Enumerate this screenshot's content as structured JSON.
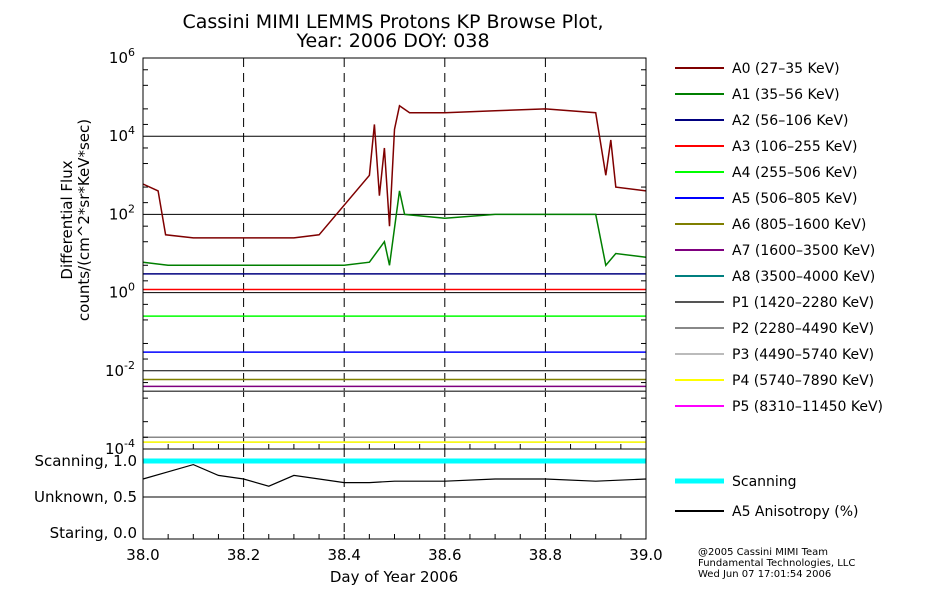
{
  "chart_data": {
    "type": "line",
    "title_line1": "Cassini MIMI LEMMS Protons KP Browse Plot,",
    "title_line2": "Year: 2006 DOY: 038",
    "ylabel_line1": "Differential Flux",
    "ylabel_line2": "counts/(cm^2*sr*KeV*sec)",
    "xlabel": "Day of Year 2006",
    "xlim": [
      38.0,
      39.0
    ],
    "ylim": [
      0.0001,
      1000000
    ],
    "yscale": "log",
    "x_ticks": [
      "38.0",
      "38.2",
      "38.4",
      "38.6",
      "38.8",
      "39.0"
    ],
    "y_tick_mantissa": "10",
    "y_tick_exponents": [
      "-4",
      "-2",
      "0",
      "2",
      "4",
      "6"
    ],
    "grid": true,
    "legend_position": "right",
    "series": [
      {
        "name": "A0 (27–35 KeV)",
        "color": "#7f0000",
        "points": [
          [
            38.0,
            600
          ],
          [
            38.03,
            400
          ],
          [
            38.045,
            30
          ],
          [
            38.1,
            25
          ],
          [
            38.2,
            25
          ],
          [
            38.3,
            25
          ],
          [
            38.35,
            30
          ],
          [
            38.45,
            1000
          ],
          [
            38.46,
            20000
          ],
          [
            38.47,
            300
          ],
          [
            38.48,
            5000
          ],
          [
            38.49,
            50
          ],
          [
            38.5,
            15000
          ],
          [
            38.51,
            60000
          ],
          [
            38.53,
            40000
          ],
          [
            38.6,
            40000
          ],
          [
            38.7,
            45000
          ],
          [
            38.8,
            50000
          ],
          [
            38.9,
            40000
          ],
          [
            38.92,
            1000
          ],
          [
            38.93,
            8000
          ],
          [
            38.94,
            500
          ],
          [
            39.0,
            400
          ]
        ]
      },
      {
        "name": "A1 (35–56 KeV)",
        "color": "#007f00",
        "points": [
          [
            38.0,
            6
          ],
          [
            38.05,
            5
          ],
          [
            38.1,
            5
          ],
          [
            38.2,
            5
          ],
          [
            38.3,
            5
          ],
          [
            38.4,
            5
          ],
          [
            38.45,
            6
          ],
          [
            38.48,
            20
          ],
          [
            38.49,
            5
          ],
          [
            38.51,
            400
          ],
          [
            38.52,
            100
          ],
          [
            38.6,
            80
          ],
          [
            38.7,
            100
          ],
          [
            38.8,
            100
          ],
          [
            38.9,
            100
          ],
          [
            38.92,
            5
          ],
          [
            38.94,
            10
          ],
          [
            39.0,
            8
          ]
        ]
      },
      {
        "name": "A2 (56–106 KeV)",
        "color": "#00007f",
        "points": [
          [
            38.0,
            3
          ],
          [
            38.5,
            3
          ],
          [
            39.0,
            3
          ]
        ]
      },
      {
        "name": "A3 (106–255 KeV)",
        "color": "#ff0000",
        "points": [
          [
            38.0,
            1.2
          ],
          [
            38.5,
            1.2
          ],
          [
            39.0,
            1.2
          ]
        ]
      },
      {
        "name": "A4 (255–506 KeV)",
        "color": "#00ff00",
        "points": [
          [
            38.0,
            0.25
          ],
          [
            38.5,
            0.25
          ],
          [
            39.0,
            0.25
          ]
        ]
      },
      {
        "name": "A5 (506–805 KeV)",
        "color": "#0000ff",
        "points": [
          [
            38.0,
            0.03
          ],
          [
            38.5,
            0.03
          ],
          [
            39.0,
            0.03
          ]
        ]
      },
      {
        "name": "A6 (805–1600 KeV)",
        "color": "#7f7f00",
        "points": [
          [
            38.0,
            0.006
          ],
          [
            38.5,
            0.006
          ],
          [
            39.0,
            0.006
          ]
        ]
      },
      {
        "name": "A7 (1600–3500 KeV)",
        "color": "#7f007f",
        "points": [
          [
            38.0,
            0.004
          ],
          [
            38.5,
            0.004
          ],
          [
            39.0,
            0.004
          ]
        ]
      },
      {
        "name": "A8 (3500–4000 KeV)",
        "color": "#007f7f",
        "points": [
          [
            38.0,
            0.003
          ],
          [
            38.5,
            0.003
          ],
          [
            39.0,
            0.003
          ]
        ]
      },
      {
        "name": "P1 (1420–2280 KeV)",
        "color": "#555555",
        "points": [
          [
            38.0,
            0.003
          ],
          [
            38.5,
            0.003
          ],
          [
            39.0,
            0.003
          ]
        ]
      },
      {
        "name": "P2 (2280–4490 KeV)",
        "color": "#888888",
        "points": [
          [
            38.0,
            0.0002
          ],
          [
            38.5,
            0.0002
          ],
          [
            39.0,
            0.0002
          ]
        ]
      },
      {
        "name": "P3 (4490–5740 KeV)",
        "color": "#bbbbbb",
        "points": [
          [
            38.0,
            0.00015
          ],
          [
            38.5,
            0.00015
          ],
          [
            39.0,
            0.00015
          ]
        ]
      },
      {
        "name": "P4 (5740–7890 KeV)",
        "color": "#ffff00",
        "points": [
          [
            38.0,
            0.00015
          ],
          [
            38.5,
            0.00015
          ],
          [
            39.0,
            0.00015
          ]
        ]
      },
      {
        "name": "P5 (8310–11450 KeV)",
        "color": "#ff00ff",
        "points": []
      }
    ],
    "lower_panel": {
      "y_ticks": [
        "Scanning, 1.0",
        "Unknown, 0.5",
        "Staring, 0.0"
      ],
      "y_values": [
        1.0,
        0.5,
        0.0
      ],
      "series": [
        {
          "name": "Scanning",
          "color": "#00ffff",
          "value": 1.0
        },
        {
          "name": "A5 Anisotropy (%)",
          "color": "#000000",
          "points": [
            [
              38.0,
              0.75
            ],
            [
              38.05,
              0.85
            ],
            [
              38.1,
              0.95
            ],
            [
              38.15,
              0.8
            ],
            [
              38.2,
              0.75
            ],
            [
              38.25,
              0.65
            ],
            [
              38.3,
              0.8
            ],
            [
              38.35,
              0.75
            ],
            [
              38.4,
              0.7
            ],
            [
              38.45,
              0.7
            ],
            [
              38.5,
              0.72
            ],
            [
              38.6,
              0.72
            ],
            [
              38.7,
              0.75
            ],
            [
              38.8,
              0.75
            ],
            [
              38.9,
              0.72
            ],
            [
              39.0,
              0.75
            ]
          ]
        }
      ]
    }
  },
  "credits": [
    "@2005 Cassini MIMI Team",
    "Fundamental Technologies, LLC",
    "Wed Jun 07 17:01:54 2006"
  ]
}
